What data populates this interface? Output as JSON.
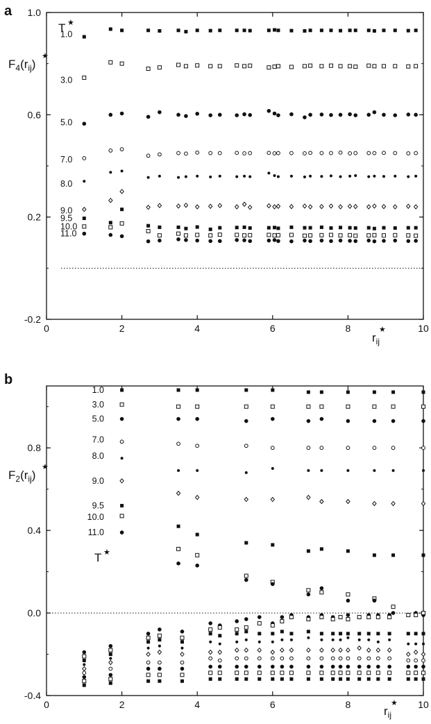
{
  "chart_data": [
    {
      "panel": "a",
      "type": "scatter",
      "ylabel_main": "F",
      "ylabel_sub": "4",
      "ylabel_arg": "(r",
      "ylabel_argsub": "ij",
      "ylabel_close": ")",
      "xlabel_main": "r",
      "xlabel_sub": "ij",
      "temperature_header": "T",
      "xlim": [
        0,
        10
      ],
      "ylim": [
        -0.2,
        1.0
      ],
      "xticks": [
        0,
        2,
        4,
        6,
        8,
        10
      ],
      "xtick_labels": [
        "0",
        "2",
        "4",
        "6",
        "8",
        "10"
      ],
      "yticks": [
        -0.2,
        0.2,
        0.6,
        1.0
      ],
      "ytick_labels": [
        "-0.2",
        "0.2",
        "0.6",
        "1.0"
      ],
      "reference_line": 0.0,
      "x": [
        1.0,
        1.7,
        2.0,
        2.7,
        3.0,
        3.5,
        3.7,
        4.0,
        4.35,
        4.6,
        5.05,
        5.25,
        5.4,
        5.9,
        6.05,
        6.15,
        6.5,
        6.85,
        7.0,
        7.3,
        7.55,
        7.8,
        8.05,
        8.2,
        8.55,
        8.7,
        8.95,
        9.25,
        9.6,
        9.8
      ],
      "series": [
        {
          "temperature": "1.0",
          "marker": "filled-square",
          "label_y": 0.915,
          "values": [
            0.905,
            0.935,
            0.93,
            0.93,
            0.928,
            0.93,
            0.925,
            0.93,
            0.929,
            0.93,
            0.93,
            0.93,
            0.929,
            0.93,
            0.932,
            0.93,
            0.929,
            0.928,
            0.93,
            0.93,
            0.93,
            0.929,
            0.93,
            0.93,
            0.93,
            0.928,
            0.93,
            0.93,
            0.929,
            0.93
          ]
        },
        {
          "temperature": "3.0",
          "marker": "open-square",
          "label_y": 0.735,
          "values": [
            0.745,
            0.805,
            0.8,
            0.78,
            0.785,
            0.795,
            0.79,
            0.793,
            0.79,
            0.79,
            0.793,
            0.79,
            0.792,
            0.785,
            0.788,
            0.79,
            0.787,
            0.79,
            0.792,
            0.79,
            0.792,
            0.79,
            0.79,
            0.788,
            0.792,
            0.79,
            0.79,
            0.79,
            0.789,
            0.79
          ]
        },
        {
          "temperature": "5.0",
          "marker": "filled-circle",
          "label_y": 0.57,
          "values": [
            0.565,
            0.6,
            0.605,
            0.592,
            0.61,
            0.6,
            0.595,
            0.604,
            0.598,
            0.6,
            0.598,
            0.602,
            0.599,
            0.615,
            0.605,
            0.598,
            0.602,
            0.59,
            0.6,
            0.601,
            0.599,
            0.6,
            0.602,
            0.598,
            0.6,
            0.61,
            0.6,
            0.598,
            0.601,
            0.6
          ]
        },
        {
          "temperature": "7.0",
          "marker": "open-circle",
          "label_y": 0.425,
          "values": [
            0.43,
            0.46,
            0.465,
            0.44,
            0.445,
            0.45,
            0.448,
            0.452,
            0.45,
            0.45,
            0.451,
            0.449,
            0.45,
            0.451,
            0.449,
            0.45,
            0.45,
            0.449,
            0.451,
            0.45,
            0.45,
            0.452,
            0.449,
            0.45,
            0.45,
            0.45,
            0.451,
            0.45,
            0.449,
            0.45
          ]
        },
        {
          "temperature": "8.0",
          "marker": "small-filled-circle",
          "label_y": 0.33,
          "values": [
            0.34,
            0.375,
            0.38,
            0.355,
            0.36,
            0.355,
            0.358,
            0.36,
            0.357,
            0.36,
            0.358,
            0.36,
            0.358,
            0.372,
            0.362,
            0.358,
            0.36,
            0.357,
            0.36,
            0.359,
            0.361,
            0.358,
            0.36,
            0.362,
            0.358,
            0.36,
            0.359,
            0.36,
            0.358,
            0.36
          ]
        },
        {
          "temperature": "9.0",
          "marker": "open-diamond",
          "label_y": 0.225,
          "values": [
            0.23,
            0.265,
            0.3,
            0.238,
            0.245,
            0.243,
            0.246,
            0.24,
            0.242,
            0.245,
            0.24,
            0.25,
            0.238,
            0.244,
            0.24,
            0.242,
            0.241,
            0.243,
            0.24,
            0.241,
            0.243,
            0.24,
            0.242,
            0.241,
            0.24,
            0.243,
            0.241,
            0.24,
            0.242,
            0.24
          ]
        },
        {
          "temperature": "9.5",
          "marker": "filled-square",
          "label_y": 0.195,
          "values": [
            0.195,
            0.178,
            0.23,
            0.166,
            0.16,
            0.16,
            0.155,
            0.161,
            0.152,
            0.158,
            0.159,
            0.16,
            0.157,
            0.158,
            0.159,
            0.156,
            0.16,
            0.158,
            0.158,
            0.16,
            0.157,
            0.159,
            0.158,
            0.157,
            0.158,
            0.155,
            0.158,
            0.157,
            0.158,
            0.158
          ]
        },
        {
          "temperature": "10.0",
          "marker": "open-square",
          "label_y": 0.163,
          "values": [
            0.163,
            0.16,
            0.175,
            0.145,
            0.128,
            0.135,
            0.128,
            0.13,
            0.128,
            0.131,
            0.13,
            0.128,
            0.129,
            0.13,
            0.128,
            0.129,
            0.13,
            0.127,
            0.128,
            0.129,
            0.13,
            0.128,
            0.129,
            0.127,
            0.128,
            0.129,
            0.128,
            0.129,
            0.128,
            0.127
          ]
        },
        {
          "temperature": "11.0",
          "marker": "filled-circle",
          "label_y": 0.135,
          "values": [
            0.135,
            0.13,
            0.125,
            0.105,
            0.108,
            0.113,
            0.11,
            0.108,
            0.106,
            0.106,
            0.11,
            0.109,
            0.106,
            0.108,
            0.11,
            0.106,
            0.105,
            0.108,
            0.106,
            0.108,
            0.106,
            0.108,
            0.107,
            0.106,
            0.108,
            0.105,
            0.107,
            0.108,
            0.106,
            0.107
          ]
        }
      ]
    },
    {
      "panel": "b",
      "type": "scatter",
      "ylabel_main": "F",
      "ylabel_sub": "2",
      "ylabel_arg": "(r",
      "ylabel_argsub": "ij",
      "ylabel_close": ")",
      "xlabel_main": "r",
      "xlabel_sub": "ij",
      "temperature_header": "T",
      "xlim": [
        0,
        10
      ],
      "ylim": [
        -0.4,
        1.1
      ],
      "xticks": [
        0,
        2,
        4,
        6,
        8,
        10
      ],
      "xtick_labels": [
        "0",
        "2",
        "4",
        "6",
        "8",
        "10"
      ],
      "yticks": [
        -0.4,
        0.0,
        0.4,
        0.8
      ],
      "ytick_labels": [
        "-0.4",
        "0.0",
        "0.4",
        "0.8"
      ],
      "reference_line": 0.0,
      "positive_x": [
        2.0,
        3.5,
        4.0,
        5.3,
        6.0,
        6.95,
        7.3,
        8.0,
        8.7,
        9.2,
        10.0
      ],
      "positive_series": [
        {
          "temperature": "1.0",
          "marker": "filled-square",
          "values": [
            1.08,
            1.08,
            1.08,
            1.08,
            1.08,
            1.07,
            1.07,
            1.07,
            1.07,
            1.07,
            1.07
          ]
        },
        {
          "temperature": "3.0",
          "marker": "open-square",
          "values": [
            1.01,
            1.0,
            1.0,
            1.0,
            1.0,
            1.0,
            1.0,
            1.0,
            1.0,
            1.0,
            1.0
          ]
        },
        {
          "temperature": "5.0",
          "marker": "filled-circle",
          "values": [
            0.94,
            0.94,
            0.94,
            0.93,
            0.94,
            0.93,
            0.94,
            0.93,
            0.93,
            0.93,
            0.93
          ]
        },
        {
          "temperature": "7.0",
          "marker": "open-circle",
          "values": [
            0.83,
            0.82,
            0.81,
            0.81,
            0.8,
            0.8,
            0.8,
            0.8,
            0.8,
            0.8,
            0.8
          ]
        },
        {
          "temperature": "8.0",
          "marker": "small-filled-circle",
          "values": [
            0.75,
            0.69,
            0.69,
            0.68,
            0.7,
            0.69,
            0.69,
            0.69,
            0.69,
            0.69,
            0.69
          ]
        },
        {
          "temperature": "9.0",
          "marker": "open-diamond",
          "values": [
            0.64,
            0.58,
            0.56,
            0.55,
            0.55,
            0.56,
            0.54,
            0.54,
            0.53,
            0.53,
            0.53
          ]
        },
        {
          "temperature": "9.5",
          "marker": "filled-square",
          "values": [
            0.52,
            0.42,
            0.38,
            0.34,
            0.33,
            0.3,
            0.31,
            0.3,
            0.28,
            0.28,
            0.28
          ]
        },
        {
          "temperature": "10.0",
          "marker": "open-square",
          "values": [
            0.47,
            0.31,
            0.28,
            0.18,
            0.15,
            0.11,
            0.1,
            0.09,
            0.07,
            0.03,
            0.0
          ]
        },
        {
          "temperature": "11.0",
          "marker": "filled-circle",
          "values": [
            0.39,
            0.24,
            0.23,
            0.16,
            0.14,
            0.09,
            0.12,
            0.06,
            0.06,
            0.0,
            -0.01
          ]
        }
      ],
      "negative_x": [
        1.0,
        1.7,
        2.7,
        3.0,
        3.6,
        4.35,
        4.6,
        5.05,
        5.3,
        5.65,
        6.0,
        6.25,
        6.5,
        6.95,
        7.3,
        7.6,
        7.8,
        8.0,
        8.3,
        8.55,
        8.8,
        9.1,
        9.6,
        9.8,
        10.0
      ],
      "negative_points": [
        {
          "marker": "filled-circle",
          "values": [
            -0.19,
            -0.16,
            -0.1,
            -0.08,
            -0.09,
            -0.05,
            -0.06,
            -0.04,
            -0.03,
            -0.02,
            -0.05,
            -0.02,
            -0.01,
            -0.02,
            -0.01,
            -0.02,
            -0.02,
            -0.01,
            -0.02,
            -0.01,
            -0.01,
            -0.01,
            -0.01,
            0.0,
            -0.01
          ]
        },
        {
          "marker": "open-square",
          "values": [
            -0.21,
            -0.18,
            -0.12,
            -0.11,
            -0.12,
            -0.08,
            -0.07,
            -0.08,
            -0.07,
            -0.05,
            -0.06,
            -0.04,
            -0.02,
            -0.03,
            -0.02,
            -0.03,
            -0.02,
            -0.03,
            -0.02,
            -0.02,
            -0.02,
            -0.02,
            -0.01,
            -0.01,
            0.0
          ]
        },
        {
          "marker": "filled-square",
          "values": [
            -0.23,
            -0.2,
            -0.14,
            -0.13,
            -0.14,
            -0.1,
            -0.11,
            -0.1,
            -0.09,
            -0.1,
            -0.1,
            -0.09,
            -0.1,
            -0.09,
            -0.1,
            -0.1,
            -0.1,
            -0.1,
            -0.1,
            -0.1,
            -0.1,
            -0.1,
            -0.1,
            -0.1,
            -0.1
          ]
        },
        {
          "marker": "small-filled-circle",
          "values": [
            -0.25,
            -0.22,
            -0.17,
            -0.16,
            -0.17,
            -0.14,
            -0.15,
            -0.14,
            -0.13,
            -0.14,
            -0.14,
            -0.13,
            -0.13,
            -0.12,
            -0.13,
            -0.13,
            -0.13,
            -0.12,
            -0.13,
            -0.13,
            -0.14,
            -0.13,
            -0.15,
            -0.15,
            -0.15
          ]
        },
        {
          "marker": "open-diamond",
          "values": [
            -0.27,
            -0.24,
            -0.2,
            -0.19,
            -0.2,
            -0.19,
            -0.19,
            -0.18,
            -0.18,
            -0.18,
            -0.19,
            -0.18,
            -0.18,
            -0.18,
            -0.18,
            -0.18,
            -0.18,
            -0.18,
            -0.17,
            -0.18,
            -0.18,
            -0.18,
            -0.2,
            -0.19,
            -0.2
          ]
        },
        {
          "marker": "open-circle",
          "values": [
            -0.29,
            -0.27,
            -0.24,
            -0.24,
            -0.24,
            -0.22,
            -0.23,
            -0.22,
            -0.22,
            -0.22,
            -0.22,
            -0.22,
            -0.22,
            -0.22,
            -0.22,
            -0.22,
            -0.22,
            -0.22,
            -0.22,
            -0.22,
            -0.22,
            -0.22,
            -0.23,
            -0.23,
            -0.23
          ]
        },
        {
          "marker": "filled-circle",
          "values": [
            -0.31,
            -0.3,
            -0.27,
            -0.27,
            -0.27,
            -0.26,
            -0.26,
            -0.26,
            -0.26,
            -0.26,
            -0.26,
            -0.26,
            -0.26,
            -0.26,
            -0.26,
            -0.26,
            -0.26,
            -0.26,
            -0.26,
            -0.26,
            -0.26,
            -0.26,
            -0.26,
            -0.26,
            -0.26
          ]
        },
        {
          "marker": "open-square",
          "values": [
            -0.33,
            -0.32,
            -0.3,
            -0.3,
            -0.3,
            -0.29,
            -0.29,
            -0.29,
            -0.29,
            -0.29,
            -0.29,
            -0.29,
            -0.29,
            -0.29,
            -0.29,
            -0.29,
            -0.29,
            -0.29,
            -0.29,
            -0.29,
            -0.29,
            -0.29,
            -0.29,
            -0.29,
            -0.29
          ]
        },
        {
          "marker": "filled-square",
          "values": [
            -0.35,
            -0.34,
            -0.33,
            -0.33,
            -0.33,
            -0.32,
            -0.32,
            -0.32,
            -0.32,
            -0.32,
            -0.32,
            -0.32,
            -0.32,
            -0.32,
            -0.32,
            -0.32,
            -0.32,
            -0.32,
            -0.32,
            -0.32,
            -0.32,
            -0.32,
            -0.32,
            -0.32,
            -0.32
          ]
        }
      ],
      "temperature_labels": [
        "1.0",
        "3.0",
        "5.0",
        "7.0",
        "8.0",
        "9.0",
        "9.5",
        "10.0",
        "11.0"
      ]
    }
  ]
}
